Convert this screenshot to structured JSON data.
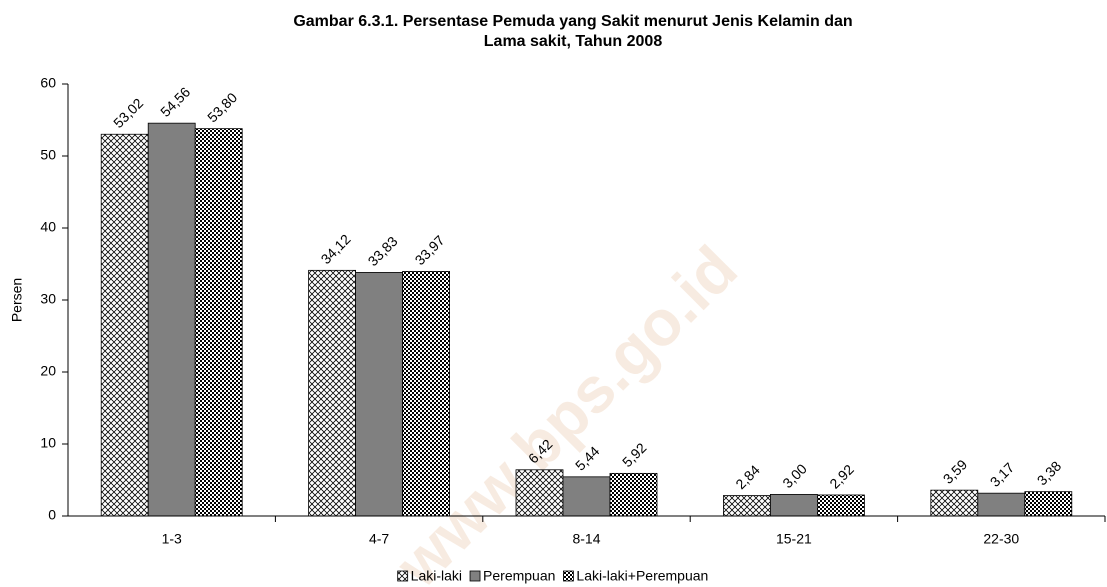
{
  "chart_data": {
    "type": "bar",
    "title": [
      "Gambar 6.3.1. Persentase Pemuda yang Sakit menurut Jenis Kelamin dan",
      "Lama sakit, Tahun 2008"
    ],
    "y_label": "Persen",
    "watermark": "www.bps.go.id",
    "categories": [
      "1-3",
      "4-7",
      "8-14",
      "15-21",
      "22-30"
    ],
    "series": [
      {
        "name": "Laki-laki",
        "color": "#ffffff",
        "pattern": "crosshatch",
        "values": [
          53.02,
          34.12,
          6.42,
          2.84,
          3.59
        ],
        "value_labels": [
          "53,02",
          "34,12",
          "6,42",
          "2,84",
          "3,59"
        ]
      },
      {
        "name": "Perempuan",
        "color": "#808080",
        "pattern": "solid",
        "values": [
          54.56,
          33.83,
          5.44,
          3.0,
          3.17
        ],
        "value_labels": [
          "54,56",
          "33,83",
          "5,44",
          "3,00",
          "3,17"
        ]
      },
      {
        "name": "Laki-laki+Perempuan",
        "color": "#ffffff",
        "pattern": "dots",
        "values": [
          53.8,
          33.97,
          5.92,
          2.92,
          3.38
        ],
        "value_labels": [
          "53,80",
          "33,97",
          "5,92",
          "2,92",
          "3,38"
        ]
      }
    ],
    "ylim": [
      0,
      60
    ],
    "yticks": [
      0,
      10,
      20,
      30,
      40,
      50,
      60
    ],
    "grid": false,
    "legend": "bottom"
  }
}
